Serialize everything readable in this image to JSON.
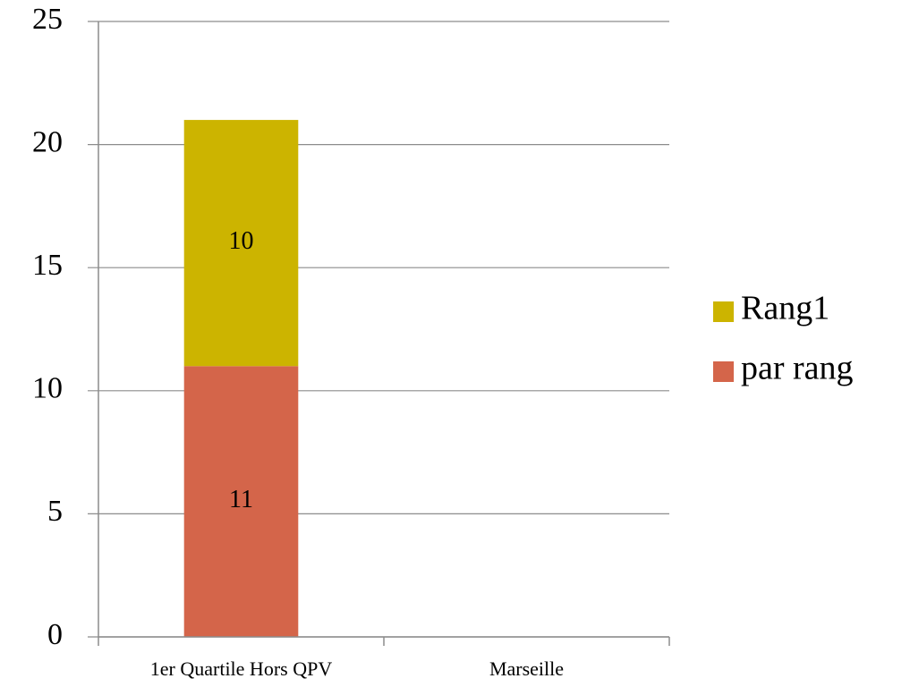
{
  "chart_data": {
    "type": "stacked_bar",
    "categories": [
      "1er Quartile Hors QPV",
      "Marseille"
    ],
    "series": [
      {
        "name": "par rang",
        "color": "#d4654a",
        "values": [
          11,
          null
        ]
      },
      {
        "name": "Rang1",
        "color": "#ccb400",
        "values": [
          10,
          null
        ]
      }
    ],
    "ylim": [
      0,
      25
    ],
    "yticks": [
      0,
      5,
      10,
      15,
      20,
      25
    ],
    "grid": true,
    "legend": "right"
  }
}
